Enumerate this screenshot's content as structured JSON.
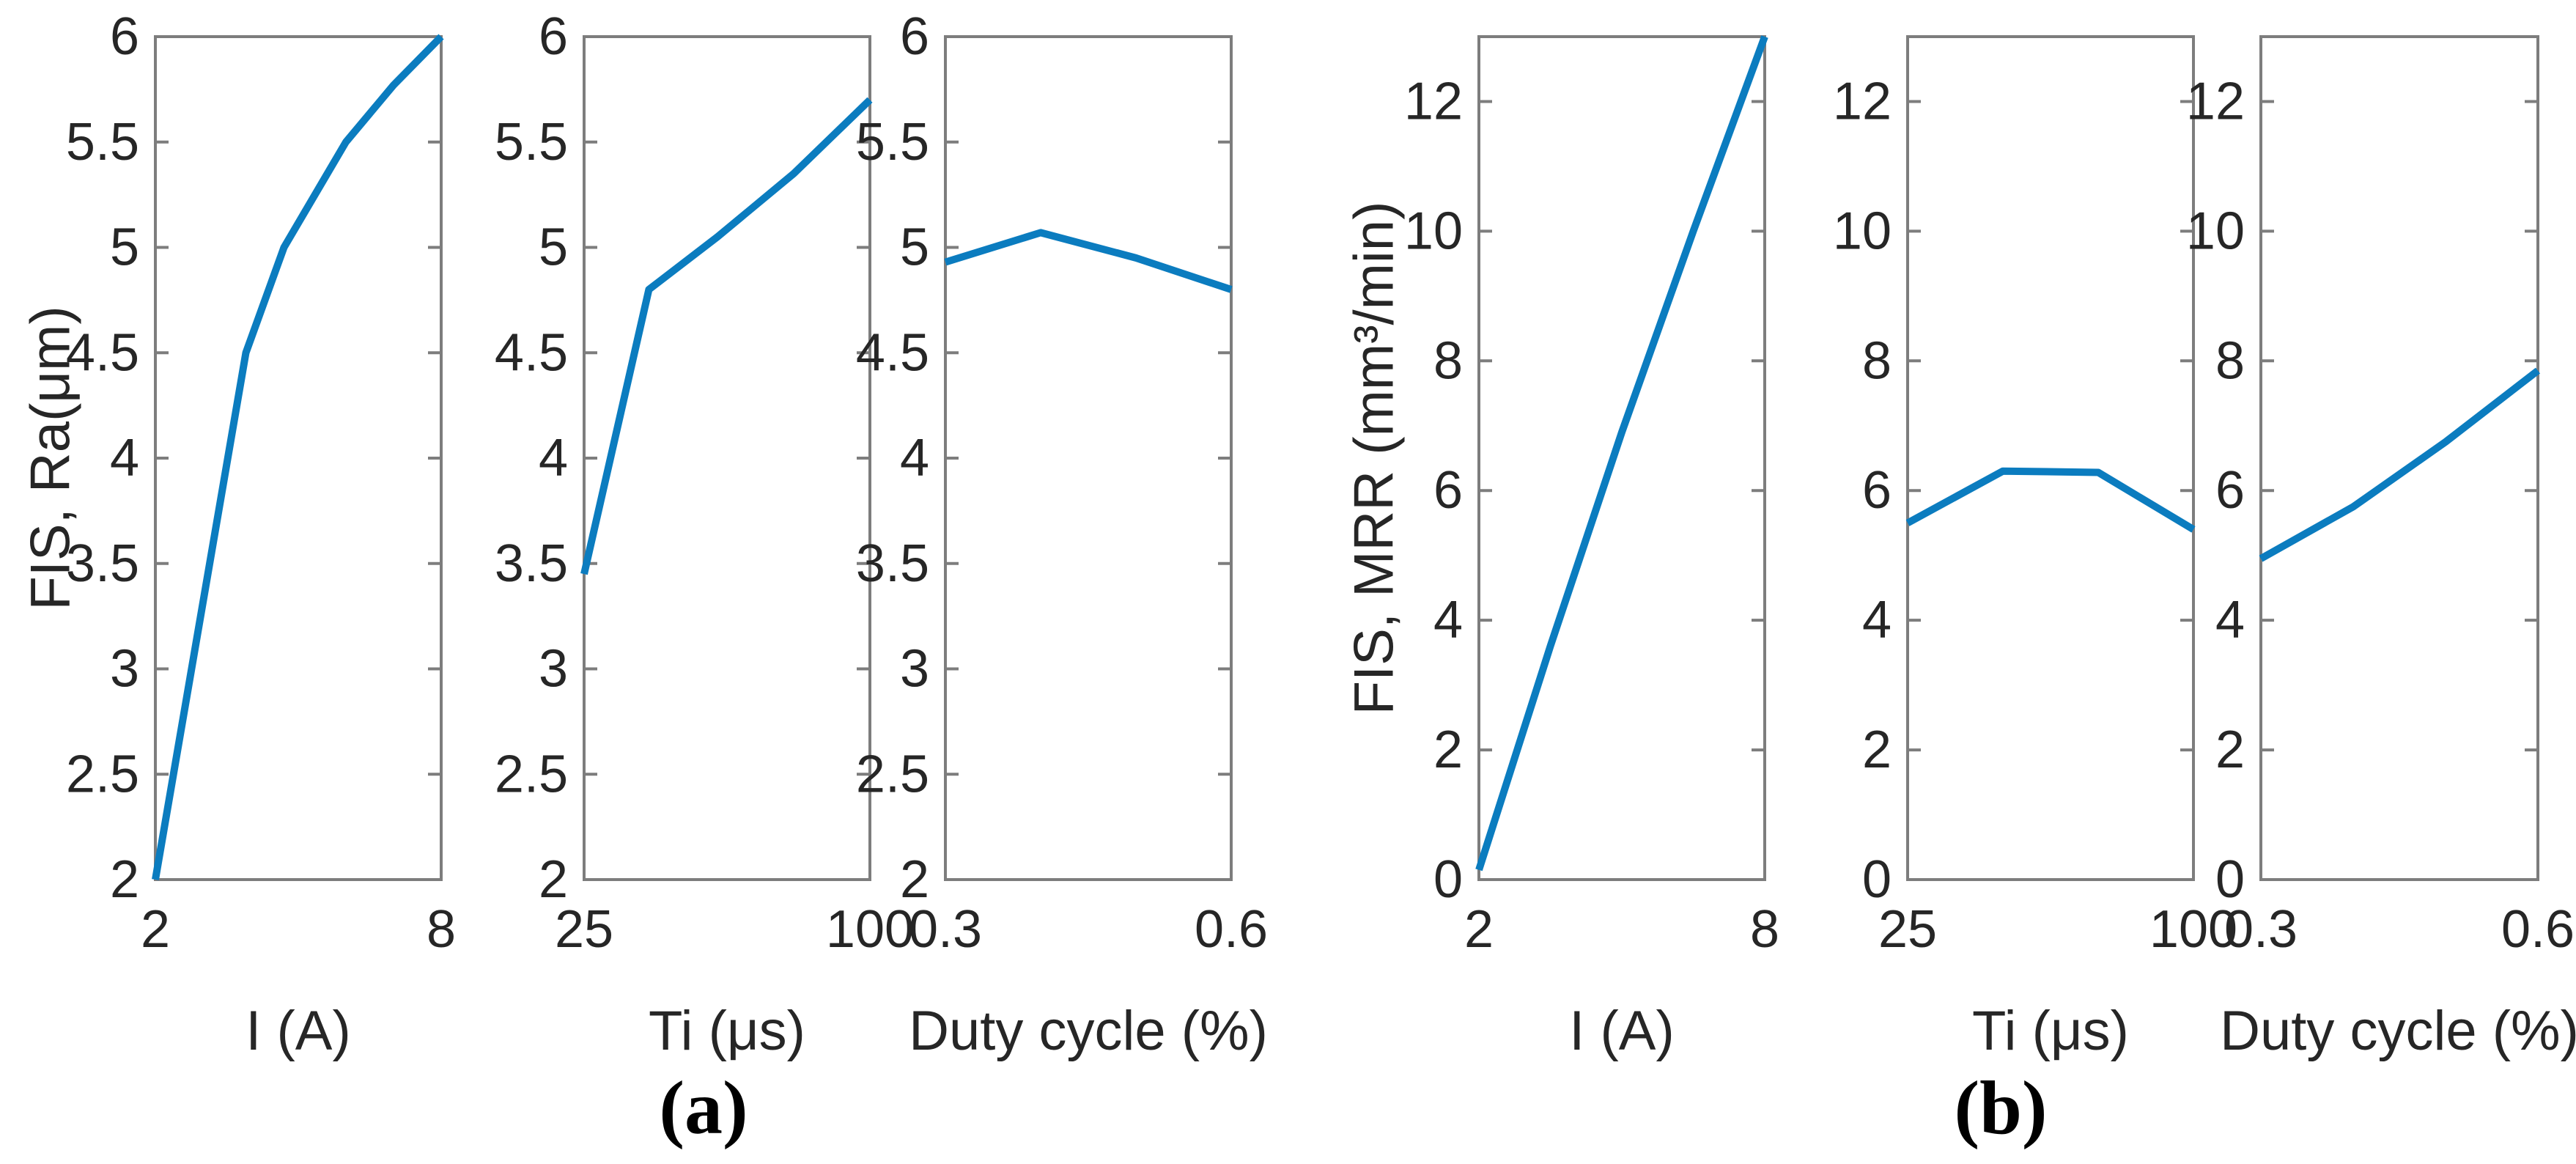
{
  "figure": {
    "captions": {
      "a": "(a)",
      "b": "(b)"
    },
    "colors": {
      "line": "#0b7cbf",
      "axis": "#7d7d7d",
      "tick_text": "#262626",
      "background": "#ffffff"
    }
  },
  "chart_data": [
    {
      "id": "a1",
      "panel": "a",
      "type": "line",
      "title": "",
      "xlabel": "I (A)",
      "ylabel": "FIS, Ra(μm)",
      "xlim": [
        2,
        8
      ],
      "ylim": [
        2,
        6
      ],
      "xticks": [
        2,
        8
      ],
      "xtick_labels": [
        "2",
        "8"
      ],
      "yticks": [
        2,
        2.5,
        3,
        3.5,
        4,
        4.5,
        5,
        5.5,
        6
      ],
      "ytick_labels": [
        "2",
        "2.5",
        "3",
        "3.5",
        "4",
        "4.5",
        "5",
        "5.5",
        "6"
      ],
      "legend": null,
      "grid": false,
      "x": [
        2,
        3.9,
        4.7,
        6.0,
        7.0,
        8.0
      ],
      "y": [
        2.0,
        4.5,
        5.0,
        5.5,
        5.77,
        6.0
      ]
    },
    {
      "id": "a2",
      "panel": "a",
      "type": "line",
      "title": "",
      "xlabel": "Ti (μs)",
      "ylabel": "",
      "xlim": [
        25,
        100
      ],
      "ylim": [
        2,
        6
      ],
      "xticks": [
        25,
        100
      ],
      "xtick_labels": [
        "25",
        "100"
      ],
      "yticks": [
        2,
        2.5,
        3,
        3.5,
        4,
        4.5,
        5,
        5.5,
        6
      ],
      "ytick_labels": [
        "2",
        "2.5",
        "3",
        "3.5",
        "4",
        "4.5",
        "5",
        "5.5",
        "6"
      ],
      "legend": null,
      "grid": false,
      "x": [
        25,
        42,
        60,
        80,
        100
      ],
      "y": [
        3.45,
        4.8,
        5.05,
        5.35,
        5.7
      ]
    },
    {
      "id": "a3",
      "panel": "a",
      "type": "line",
      "title": "",
      "xlabel": "Duty cycle (%)",
      "ylabel": "",
      "xlim": [
        0.3,
        0.6
      ],
      "ylim": [
        2,
        6
      ],
      "xticks": [
        0.3,
        0.6
      ],
      "xtick_labels": [
        "0.3",
        "0.6"
      ],
      "yticks": [
        2,
        2.5,
        3,
        3.5,
        4,
        4.5,
        5,
        5.5,
        6
      ],
      "ytick_labels": [
        "2",
        "2.5",
        "3",
        "3.5",
        "4",
        "4.5",
        "5",
        "5.5",
        "6"
      ],
      "legend": null,
      "grid": false,
      "x": [
        0.3,
        0.4,
        0.5,
        0.6
      ],
      "y": [
        4.93,
        5.07,
        4.95,
        4.8
      ]
    },
    {
      "id": "b1",
      "panel": "b",
      "type": "line",
      "title": "",
      "xlabel": "I (A)",
      "ylabel": "FIS, MRR (mm³/min)",
      "xlim": [
        2,
        8
      ],
      "ylim": [
        0,
        13
      ],
      "xticks": [
        2,
        8
      ],
      "xtick_labels": [
        "2",
        "8"
      ],
      "yticks": [
        0,
        2,
        4,
        6,
        8,
        10,
        12
      ],
      "ytick_labels": [
        "0",
        "2",
        "4",
        "6",
        "8",
        "10",
        "12"
      ],
      "legend": null,
      "grid": false,
      "x": [
        2,
        3.5,
        5.0,
        6.5,
        8.0
      ],
      "y": [
        0.15,
        3.6,
        6.9,
        10.0,
        13.0
      ]
    },
    {
      "id": "b2",
      "panel": "b",
      "type": "line",
      "title": "",
      "xlabel": "Ti (μs)",
      "ylabel": "",
      "xlim": [
        25,
        100
      ],
      "ylim": [
        0,
        13
      ],
      "xticks": [
        25,
        100
      ],
      "xtick_labels": [
        "25",
        "100"
      ],
      "yticks": [
        0,
        2,
        4,
        6,
        8,
        10,
        12
      ],
      "ytick_labels": [
        "0",
        "2",
        "4",
        "6",
        "8",
        "10",
        "12"
      ],
      "legend": null,
      "grid": false,
      "x": [
        25,
        50,
        75,
        100
      ],
      "y": [
        5.5,
        6.3,
        6.28,
        5.4
      ]
    },
    {
      "id": "b3",
      "panel": "b",
      "type": "line",
      "title": "",
      "xlabel": "Duty cycle (%)",
      "ylabel": "",
      "xlim": [
        0.3,
        0.6
      ],
      "ylim": [
        0,
        13
      ],
      "xticks": [
        0.3,
        0.6
      ],
      "xtick_labels": [
        "0.3",
        "0.6"
      ],
      "yticks": [
        0,
        2,
        4,
        6,
        8,
        10,
        12
      ],
      "ytick_labels": [
        "0",
        "2",
        "4",
        "6",
        "8",
        "10",
        "12"
      ],
      "legend": null,
      "grid": false,
      "x": [
        0.3,
        0.4,
        0.5,
        0.6
      ],
      "y": [
        4.95,
        5.75,
        6.75,
        7.85
      ]
    }
  ]
}
